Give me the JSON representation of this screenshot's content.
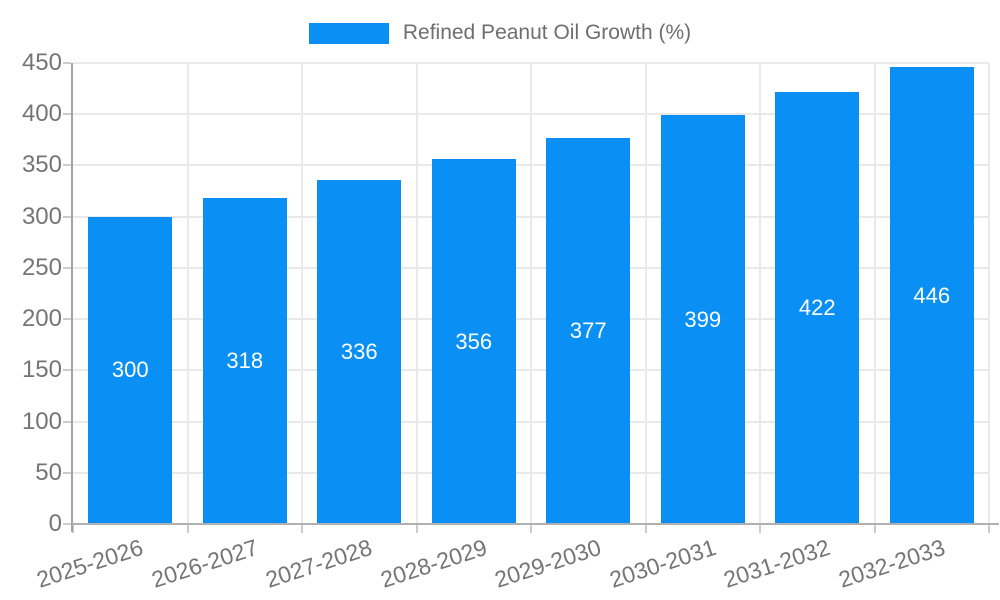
{
  "chart_data": {
    "type": "bar",
    "title": "",
    "legend": [
      {
        "label": "Refined Peanut Oil Growth (%)",
        "color": "#0a90f5"
      }
    ],
    "categories": [
      "2025-2026",
      "2026-2027",
      "2027-2028",
      "2028-2029",
      "2029-2030",
      "2030-2031",
      "2031-2032",
      "2032-2033"
    ],
    "series": [
      {
        "name": "Refined Peanut Oil Growth (%)",
        "values": [
          300,
          318,
          336,
          356,
          377,
          399,
          422,
          446
        ]
      }
    ],
    "value_labels": [
      "300",
      "318",
      "336",
      "356",
      "377",
      "399",
      "422",
      "446"
    ],
    "xlabel": "",
    "ylabel": "",
    "ylim": [
      0,
      450
    ],
    "ytick_step": 50,
    "ytick_labels": [
      "0",
      "50",
      "100",
      "150",
      "200",
      "250",
      "300",
      "350",
      "400",
      "450"
    ],
    "grid": "on",
    "legend_position": "top-center",
    "colors": {
      "bar": "#0a90f5",
      "grid_line": "#e9e9e9",
      "axis_line": "#a3a3a3",
      "baseline": "#b0b0b0",
      "tick": "#cccccc",
      "axis_text": "#757575",
      "legend_text": "#6e6e6e",
      "bar_label_text": "#ffffff",
      "background": "#ffffff"
    }
  }
}
